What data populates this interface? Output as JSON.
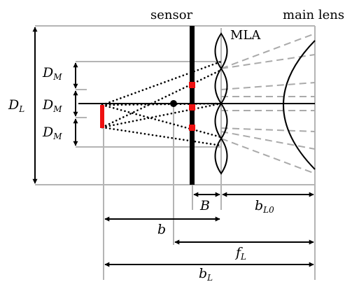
{
  "labels": {
    "sensor": "sensor",
    "main_lens": "main lens",
    "mla": "MLA",
    "d_l": {
      "base": "D",
      "sub": "L"
    },
    "d_m_top": {
      "base": "D",
      "sub": "M"
    },
    "d_m_mid": {
      "base": "D",
      "sub": "M"
    },
    "d_m_bot": {
      "base": "D",
      "sub": "M"
    },
    "big_b": "B",
    "b_l0": {
      "base": "b",
      "sub": "L0"
    },
    "b": "b",
    "f_l": {
      "base": "f",
      "sub": "L"
    },
    "b_l": {
      "base": "b",
      "sub": "L"
    }
  },
  "colors": {
    "ink": "#000000",
    "guide": "#b4b4b4",
    "ray_dashed": "#aaaaaa",
    "highlight": "#ee1111"
  }
}
